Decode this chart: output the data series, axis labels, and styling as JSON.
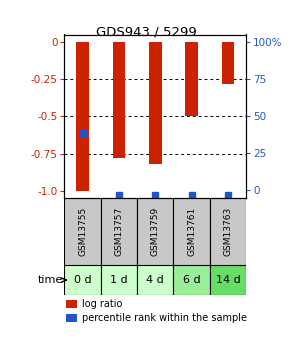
{
  "title": "GDS943 / 5299",
  "samples": [
    "GSM13755",
    "GSM13757",
    "GSM13759",
    "GSM13761",
    "GSM13763"
  ],
  "time_labels": [
    "0 d",
    "1 d",
    "4 d",
    "6 d",
    "14 d"
  ],
  "log_ratio": [
    -1.0,
    -0.78,
    -0.82,
    -0.5,
    -0.28
  ],
  "percentile_rank": [
    40,
    2,
    2,
    2,
    2
  ],
  "ylim_left": [
    -1.05,
    0.05
  ],
  "ylim_right": [
    -5.25,
    105.25
  ],
  "left_ticks": [
    0,
    -0.25,
    -0.5,
    -0.75,
    -1.0
  ],
  "right_ticks": [
    0,
    25,
    50,
    75,
    100
  ],
  "bar_color": "#cc2200",
  "dot_color": "#2255cc",
  "left_tick_color": "#cc2200",
  "right_tick_color": "#2255cc",
  "grid_color": "#000000",
  "bg_color": "#ffffff",
  "sample_bg": "#c8c8c8",
  "time_bg_colors": [
    "#ccffcc",
    "#ccffcc",
    "#ccffcc",
    "#99ee99",
    "#66dd66"
  ],
  "bar_width": 0.35,
  "legend_log_ratio": "log ratio",
  "legend_percentile": "percentile rank within the sample"
}
